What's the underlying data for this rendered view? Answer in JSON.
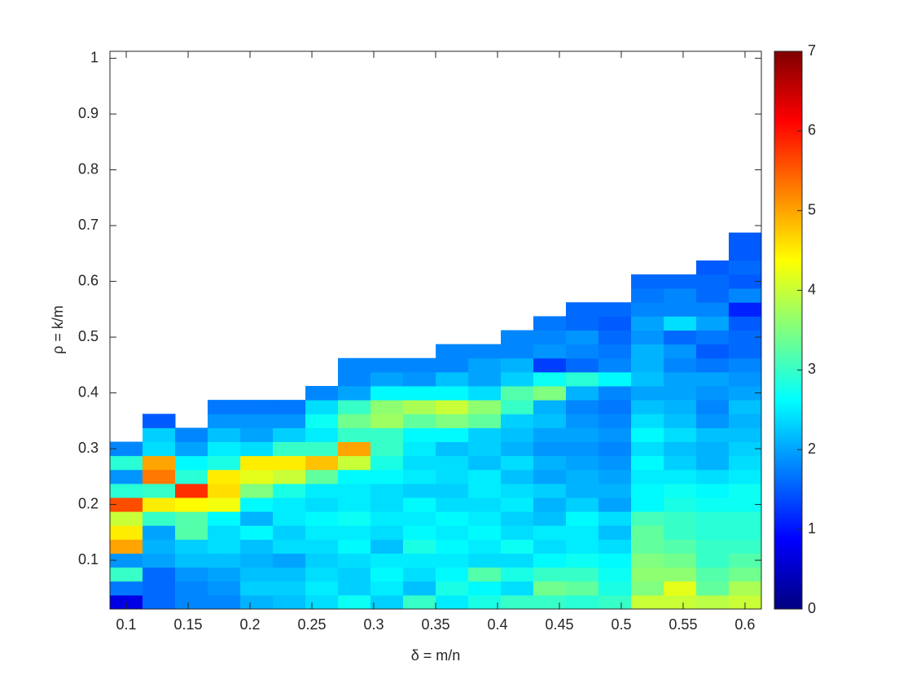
{
  "chart_data": {
    "type": "heatmap",
    "xlabel": "δ = m/n",
    "ylabel": "ρ = k/m",
    "x": [
      0.1,
      0.1263,
      0.1526,
      0.1789,
      0.2053,
      0.2316,
      0.2579,
      0.2842,
      0.3105,
      0.3368,
      0.3632,
      0.3895,
      0.4158,
      0.4421,
      0.4684,
      0.4947,
      0.5211,
      0.5474,
      0.5737,
      0.6
    ],
    "y": [
      0.025,
      0.05,
      0.075,
      0.1,
      0.125,
      0.15,
      0.175,
      0.2,
      0.225,
      0.25,
      0.275,
      0.3,
      0.325,
      0.35,
      0.375,
      0.4,
      0.425,
      0.45,
      0.475,
      0.5,
      0.525,
      0.55,
      0.575,
      0.6,
      0.625,
      0.65,
      0.675
    ],
    "z": [
      [
        0.7,
        1.7,
        3.0,
        1.9,
        5.0,
        4.5,
        4.0,
        5.6,
        2.9,
        1.9,
        2.9,
        1.8
      ],
      [
        1.6,
        1.6,
        1.6,
        2.0,
        2.1,
        2.0,
        3.0,
        4.5,
        3.0,
        5.3,
        5.0,
        2.4,
        2.3,
        1.5
      ],
      [
        1.8,
        1.8,
        1.9,
        2.2,
        2.3,
        3.2,
        3.2,
        4.4,
        5.8,
        2.9,
        2.6,
        2.0,
        1.8
      ],
      [
        1.8,
        1.9,
        2.0,
        2.2,
        2.4,
        2.4,
        2.6,
        4.3,
        4.6,
        4.5,
        2.8,
        2.5,
        2.2,
        1.9,
        1.7
      ],
      [
        2.1,
        2.3,
        2.2,
        2.1,
        2.2,
        2.6,
        2.1,
        2.6,
        3.5,
        4.2,
        4.5,
        2.4,
        2.0,
        1.9,
        1.7
      ],
      [
        2.2,
        2.3,
        2.2,
        2.0,
        2.4,
        2.3,
        2.5,
        2.5,
        2.8,
        4.0,
        4.5,
        3.0,
        2.3,
        1.9,
        1.7
      ],
      [
        2.4,
        2.5,
        2.4,
        2.3,
        2.4,
        2.5,
        2.6,
        2.4,
        2.5,
        3.3,
        4.8,
        3.0,
        2.5,
        2.7,
        2.4,
        1.8
      ],
      [
        2.7,
        2.3,
        2.3,
        2.4,
        2.6,
        2.5,
        2.7,
        2.5,
        2.5,
        2.6,
        4.0,
        5.0,
        3.0,
        3.4,
        3.0,
        2.0,
        1.8,
        1.8
      ],
      [
        2.3,
        2.5,
        2.6,
        2.5,
        2.2,
        2.4,
        2.5,
        2.4,
        2.4,
        2.6,
        2.8,
        3.0,
        3.0,
        3.7,
        3.6,
        2.6,
        2.0,
        1.8
      ],
      [
        3.0,
        2.2,
        2.4,
        2.5,
        2.8,
        2.6,
        2.5,
        2.6,
        2.3,
        2.5,
        2.4,
        2.5,
        2.6,
        3.3,
        3.8,
        2.6,
        1.9,
        1.8
      ],
      [
        2.5,
        2.8,
        2.6,
        2.5,
        2.6,
        2.5,
        2.6,
        2.4,
        2.3,
        2.4,
        2.4,
        2.2,
        2.6,
        3.5,
        4.0,
        2.6,
        2.2,
        1.8,
        1.8
      ],
      [
        2.8,
        2.6,
        3.2,
        2.4,
        2.5,
        2.6,
        2.5,
        2.4,
        2.5,
        2.5,
        2.2,
        2.3,
        2.3,
        3.3,
        3.6,
        2.4,
        2.0,
        2.0,
        1.8
      ],
      [
        3.0,
        2.4,
        2.8,
        2.4,
        2.7,
        2.4,
        2.3,
        2.5,
        2.4,
        2.2,
        2.4,
        2.1,
        2.2,
        2.3,
        3.0,
        3.2,
        2.3,
        2.1,
        1.8,
        1.8
      ],
      [
        3.0,
        3.4,
        3.0,
        2.6,
        2.4,
        2.5,
        2.2,
        2.1,
        2.3,
        2.0,
        2.1,
        1.9,
        2.0,
        2.2,
        2.1,
        3.5,
        2.7,
        1.3,
        1.9,
        1.8,
        1.7
      ],
      [
        2.9,
        3.3,
        3.0,
        2.7,
        2.5,
        2.5,
        2.6,
        2.3,
        2.1,
        2.1,
        2.0,
        1.9,
        2.0,
        1.9,
        1.8,
        2.1,
        2.9,
        1.6,
        1.8,
        1.9,
        1.6,
        1.6
      ],
      [
        3.0,
        2.8,
        2.7,
        2.6,
        2.4,
        2.2,
        2.4,
        2.0,
        2.1,
        2.0,
        1.9,
        1.8,
        1.9,
        1.8,
        1.7,
        1.8,
        2.6,
        1.8,
        1.7,
        1.6,
        1.5,
        1.6
      ],
      [
        4.0,
        3.5,
        3.6,
        3.5,
        3.3,
        3.3,
        3.1,
        2.6,
        2.6,
        2.5,
        2.6,
        2.4,
        2.6,
        2.4,
        2.2,
        2.0,
        2.2,
        2.1,
        2.1,
        1.9,
        2.0,
        1.8,
        1.7,
        1.6
      ],
      [
        4.0,
        4.2,
        3.6,
        3.4,
        3.2,
        3.0,
        3.0,
        2.8,
        2.7,
        2.5,
        2.3,
        2.2,
        2.4,
        2.2,
        2.1,
        2.0,
        2.0,
        1.8,
        1.9,
        1.6,
        2.4,
        1.8,
        1.8,
        1.6
      ],
      [
        3.9,
        3.3,
        3.2,
        3.0,
        3.0,
        2.9,
        2.9,
        2.7,
        2.6,
        2.4,
        2.1,
        2.1,
        2.2,
        1.9,
        1.8,
        1.9,
        2.0,
        1.7,
        1.5,
        1.7,
        2.0,
        1.8,
        1.6,
        1.6,
        1.5
      ],
      [
        4.0,
        3.8,
        3.4,
        3.2,
        3.0,
        2.9,
        2.9,
        2.7,
        2.7,
        2.5,
        2.4,
        2.3,
        2.2,
        2.1,
        2.2,
        2.0,
        1.9,
        1.8,
        1.6,
        1.6,
        1.5,
        1.1,
        1.8,
        1.5,
        1.6,
        1.5,
        1.5
      ]
    ],
    "xlim": [
      0.0868,
      0.6132
    ],
    "ylim": [
      0.0125,
      1.0125
    ],
    "xticks": [
      0.1,
      0.15,
      0.2,
      0.25,
      0.3,
      0.35,
      0.4,
      0.45,
      0.5,
      0.55,
      0.6
    ],
    "yticks": [
      0.1,
      0.2,
      0.3,
      0.4,
      0.5,
      0.6,
      0.7,
      0.8,
      0.9,
      1
    ],
    "colormap": "jet",
    "clim": [
      0,
      7
    ],
    "cticks": [
      0,
      1,
      2,
      3,
      4,
      5,
      6,
      7
    ]
  }
}
